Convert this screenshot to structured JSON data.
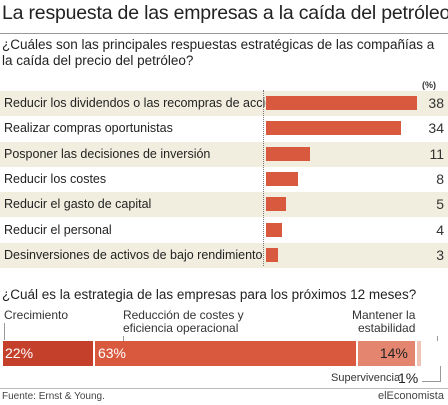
{
  "title": "La respuesta de las empresas a la caída del petróleo",
  "subtitle": "¿Cuáles son las principales respuestas estratégicas de las compañías a la caída del precio del petróleo?",
  "pct_header": "(%)",
  "question2": "¿Cuál es la estrategia de las empresas para los próximos 12 meses?",
  "source": "Fuente: Ernst & Young.",
  "brand": "elEconomista",
  "colors": {
    "bar": "#d9593f",
    "crecimiento": "#c4402b",
    "reduccion": "#d9593f",
    "mantener": "#e4866f",
    "supervivencia": "#f0c4b5",
    "row_shade": "#f1eedf"
  },
  "chart_data": [
    {
      "type": "bar",
      "orientation": "horizontal",
      "title": "¿Cuáles son las principales respuestas estratégicas de las compañías a la caída del precio del petróleo?",
      "unit": "(%)",
      "categories": [
        "Reducir los dividendos o las recompras de acciones",
        "Realizar compras oportunistas",
        "Posponer las decisiones de inversión",
        "Reducir los costes",
        "Reducir el gasto de capital",
        "Reducir el personal",
        "Desinversiones de activos de bajo rendimiento"
      ],
      "values": [
        38,
        34,
        11,
        8,
        5,
        4,
        3
      ],
      "value_labels": [
        "38",
        "34",
        "11",
        "8",
        "5",
        "4",
        "3"
      ]
    },
    {
      "type": "bar",
      "orientation": "horizontal",
      "stacked": true,
      "title": "¿Cuál es la estrategia de las empresas para los próximos 12 meses?",
      "categories": [
        "Crecimiento",
        "Reducción de costes y eficiencia operacional",
        "Mantener la estabilidad",
        "Supervivencia"
      ],
      "category_label_lines": [
        [
          "Crecimiento"
        ],
        [
          "Reducción de costes y",
          "eficiencia operacional"
        ],
        [
          "Mantener la",
          "estabilidad"
        ],
        [
          "Supervivencia"
        ]
      ],
      "values": [
        22,
        63,
        14,
        1
      ],
      "value_labels": [
        "22%",
        "63%",
        "14%",
        "1%"
      ]
    }
  ]
}
